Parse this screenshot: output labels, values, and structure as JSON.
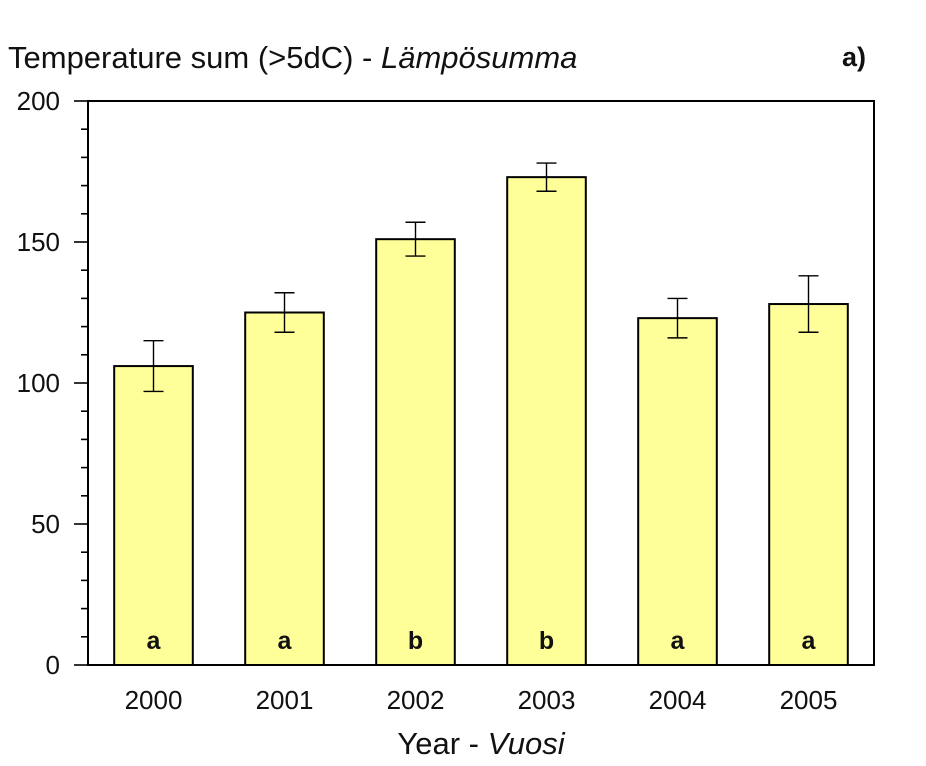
{
  "chart_data": {
    "type": "bar",
    "title": "Temperature sum (>5dC) - ",
    "title_italic": "Lämpösumma",
    "panel_label": "a)",
    "xlabel": "Year - ",
    "xlabel_italic": "Vuosi",
    "ylabel": "",
    "ylim": [
      0,
      200
    ],
    "yticks": [
      0,
      50,
      100,
      150,
      200
    ],
    "ytick_labels": [
      "0",
      "50",
      "100",
      "150",
      "200"
    ],
    "categories": [
      "2000",
      "2001",
      "2002",
      "2003",
      "2004",
      "2005"
    ],
    "values": [
      106,
      125,
      151,
      173,
      123,
      128
    ],
    "error": [
      9,
      7,
      6,
      5,
      7,
      10
    ],
    "group_letters": [
      "a",
      "a",
      "b",
      "b",
      "a",
      "a"
    ],
    "bar_color": "#ffff99",
    "bar_edge_color": "#000000",
    "grid": false,
    "legend": "none"
  }
}
